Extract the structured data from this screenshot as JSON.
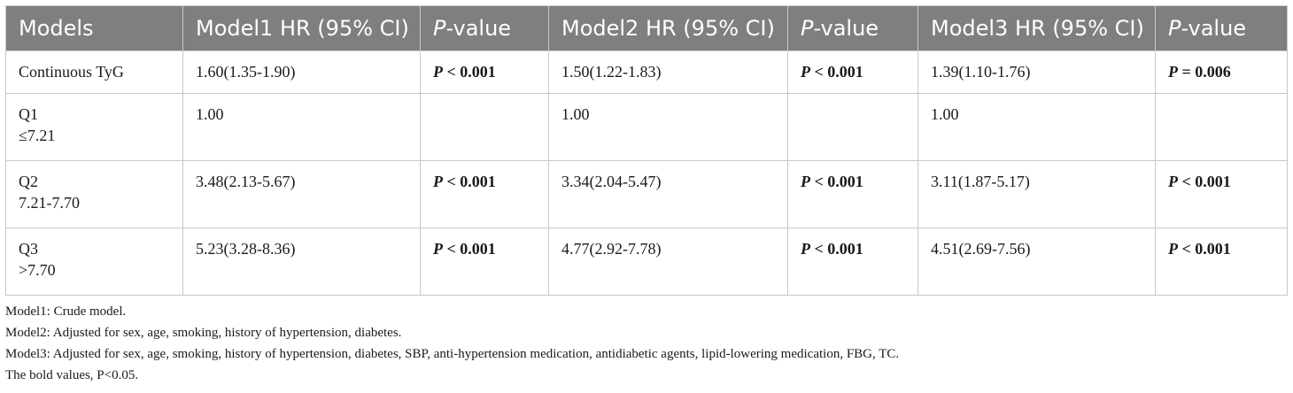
{
  "table": {
    "headers": [
      {
        "pre": "Models",
        "ital": "",
        "post": ""
      },
      {
        "pre": "Model1 HR (95% CI)",
        "ital": "",
        "post": ""
      },
      {
        "pre": "",
        "ital": "P",
        "post": "-value"
      },
      {
        "pre": "Model2 HR (95% CI)",
        "ital": "",
        "post": ""
      },
      {
        "pre": "",
        "ital": "P",
        "post": "-value"
      },
      {
        "pre": "Model3 HR (95% CI)",
        "ital": "",
        "post": ""
      },
      {
        "pre": "",
        "ital": "P",
        "post": "-value"
      }
    ],
    "rows": [
      {
        "label": "Continuous TyG",
        "sub": "",
        "m1": "1.60(1.35-1.90)",
        "p1_ital": "P",
        "p1_rest": " < 0.001",
        "m2": "1.50(1.22-1.83)",
        "p2_ital": "P",
        "p2_rest": " < 0.001",
        "m3": "1.39(1.10-1.76)",
        "p3_ital": "P",
        "p3_rest": " = 0.006"
      },
      {
        "label": "Q1",
        "sub": "≤7.21",
        "m1": "1.00",
        "p1_ital": "",
        "p1_rest": "",
        "m2": "1.00",
        "p2_ital": "",
        "p2_rest": "",
        "m3": "1.00",
        "p3_ital": "",
        "p3_rest": ""
      },
      {
        "label": "Q2",
        "sub": "7.21-7.70",
        "m1": "3.48(2.13-5.67)",
        "p1_ital": "P",
        "p1_rest": " < 0.001",
        "m2": "3.34(2.04-5.47)",
        "p2_ital": "P",
        "p2_rest": " < 0.001",
        "m3": "3.11(1.87-5.17)",
        "p3_ital": "P",
        "p3_rest": " < 0.001"
      },
      {
        "label": "Q3",
        "sub": ">7.70",
        "m1": "5.23(3.28-8.36)",
        "p1_ital": "P",
        "p1_rest": " < 0.001",
        "m2": "4.77(2.92-7.78)",
        "p2_ital": "P",
        "p2_rest": " < 0.001",
        "m3": "4.51(2.69-7.56)",
        "p3_ital": "P",
        "p3_rest": " < 0.001"
      }
    ]
  },
  "notes": [
    "Model1: Crude model.",
    "Model2: Adjusted for sex, age, smoking, history of hypertension, diabetes.",
    "Model3: Adjusted for sex, age, smoking, history of hypertension, diabetes, SBP, anti-hypertension medication, antidiabetic agents, lipid-lowering medication, FBG, TC.",
    "The bold values, P<0.05."
  ]
}
